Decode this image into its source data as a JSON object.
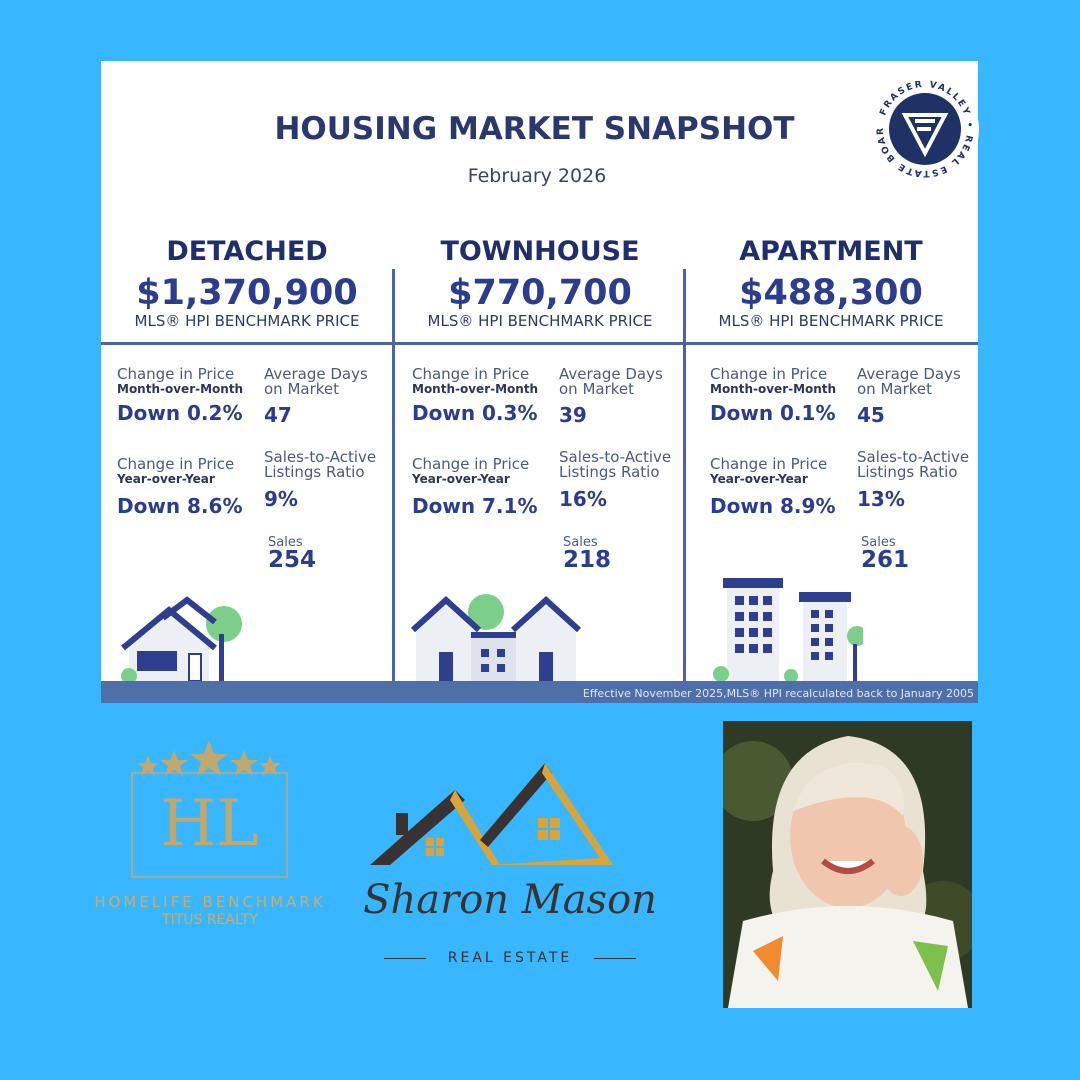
{
  "title": "HOUSING MARKET SNAPSHOT",
  "date": "February 2026",
  "board_logo": {
    "text": "FRASER VALLEY REAL ESTATE BOARD",
    "icon": "fvreb-logo"
  },
  "benchmark_label": "MLS® HPI BENCHMARK PRICE",
  "labels": {
    "mom": "Change in Price",
    "mom_sub": "Month-over-Month",
    "yoy": "Change in Price",
    "yoy_sub": "Year-over-Year",
    "dom1": "Average Days",
    "dom2": "on Market",
    "sar1": "Sales-to-Active",
    "sar2": "Listings Ratio",
    "sales": "Sales"
  },
  "columns": [
    {
      "name": "DETACHED",
      "price": "$1,370,900",
      "mom": "Down 0.2%",
      "yoy": "Down 8.6%",
      "dom": "47",
      "ratio": "9%",
      "sales": "254",
      "icon": "detached-house-icon"
    },
    {
      "name": "TOWNHOUSE",
      "price": "$770,700",
      "mom": "Down 0.3%",
      "yoy": "Down 7.1%",
      "dom": "39",
      "ratio": "16%",
      "sales": "218",
      "icon": "townhouse-icon"
    },
    {
      "name": "APARTMENT",
      "price": "$488,300",
      "mom": "Down 0.1%",
      "yoy": "Down 8.9%",
      "dom": "45",
      "ratio": "13%",
      "sales": "261",
      "icon": "apartment-icon"
    }
  ],
  "footnote": "Effective November 2025,MLS® HPI recalculated back to January 2005",
  "brokerage": {
    "initials": "HL",
    "name": "HOMELIFE BENCHMARK",
    "sub": "TITUS REALTY"
  },
  "agent": {
    "name": "Sharon Mason",
    "sub": "REAL ESTATE"
  },
  "colors": {
    "background": "#38b6ff",
    "navy": "#2b3d8f",
    "gold": "#c0a86e"
  }
}
